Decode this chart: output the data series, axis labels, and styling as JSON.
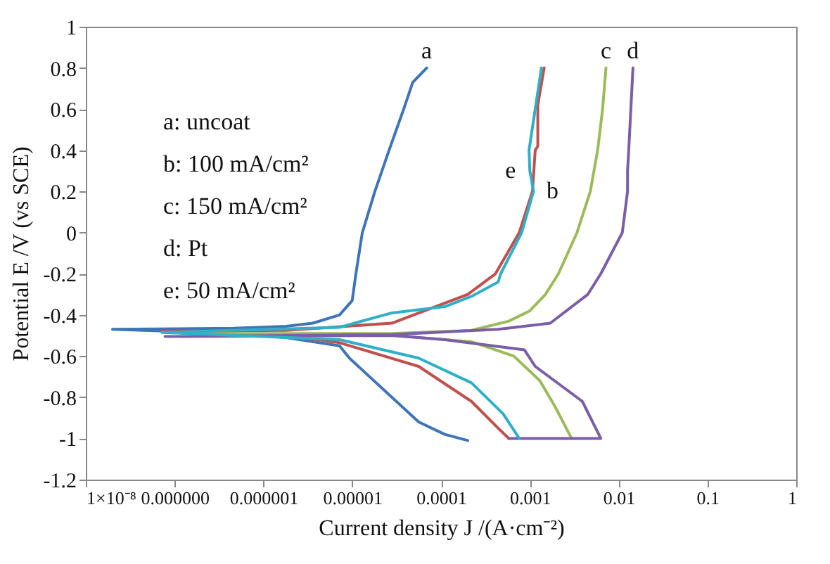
{
  "chart_data": {
    "type": "line",
    "xlabel": "Current density    J /(A·cm⁻²)",
    "ylabel": "Potential    E /V (vs SCE)",
    "log": "x",
    "grid": false,
    "legend": false,
    "marker": "none",
    "line_style": "solid",
    "xlim": [
      1e-08,
      1
    ],
    "ylim": [
      -1.2,
      1
    ],
    "xticks": [
      {
        "value": 1e-08,
        "label": "1×10⁻⁸"
      },
      {
        "value": 1e-07,
        "label": "0.000000"
      },
      {
        "value": 1e-06,
        "label": "0.000001"
      },
      {
        "value": 1e-05,
        "label": "0.00001"
      },
      {
        "value": 0.0001,
        "label": "0.0001"
      },
      0.001,
      0.01,
      0.1,
      1
    ],
    "yticks": [
      -1.2,
      -1,
      -0.8,
      -0.6,
      -0.4,
      -0.2,
      0,
      0.2,
      0.4,
      0.6,
      0.8,
      1
    ],
    "annotations": [
      "a: uncoat",
      "b: 100 mA/cm²",
      "c: 150 mA/cm²",
      "d: Pt",
      "e: 50 mA/cm²"
    ],
    "series": [
      {
        "name": "a",
        "color": "#3f74b8",
        "x": [
          0.0002,
          0.00011,
          5.6e-05,
          2.8e-05,
          9.3e-06,
          7.2e-06,
          1.8e-06,
          4.7e-07,
          2e-08,
          4.7e-07,
          1.8e-06,
          3.6e-06,
          7.2e-06,
          1e-05,
          1.1e-05,
          1.3e-05,
          1.8e-05,
          2.6e-05,
          3.8e-05,
          4.8e-05,
          6.9e-05
        ],
        "values": [
          -1.01,
          -0.98,
          -0.92,
          -0.8,
          -0.61,
          -0.55,
          -0.51,
          -0.49,
          -0.47,
          -0.465,
          -0.455,
          -0.44,
          -0.4,
          -0.33,
          -0.2,
          0,
          0.2,
          0.4,
          0.6,
          0.73,
          0.8
        ]
      },
      {
        "name": "b",
        "color": "#c0504d",
        "x": [
          0.00058,
          0.00044,
          0.00022,
          5.6e-05,
          7.2e-06,
          1.8e-06,
          7.2e-08,
          1.8e-06,
          2.8e-05,
          4.9e-05,
          0.0002,
          0.00041,
          0.00076,
          0.00107,
          0.00115,
          0.00123,
          0.00123,
          0.00145
        ],
        "values": [
          -1.0,
          -0.95,
          -0.82,
          -0.65,
          -0.535,
          -0.5,
          -0.48,
          -0.475,
          -0.44,
          -0.4,
          -0.3,
          -0.2,
          0,
          0.2,
          0.4,
          0.42,
          0.62,
          0.8
        ]
      },
      {
        "name": "c",
        "color": "#9bbb59",
        "x": [
          0.00295,
          0.00195,
          0.0013,
          0.00066,
          0.00022,
          2.8e-05,
          1.5e-07,
          2.8e-05,
          0.00022,
          0.00058,
          0.001,
          0.0015,
          0.0021,
          0.0034,
          0.0048,
          0.0058,
          0.0066,
          0.0072
        ],
        "values": [
          -1.0,
          -0.85,
          -0.72,
          -0.6,
          -0.53,
          -0.5,
          -0.49,
          -0.49,
          -0.475,
          -0.43,
          -0.38,
          -0.3,
          -0.2,
          0,
          0.2,
          0.4,
          0.6,
          0.8
        ]
      },
      {
        "name": "d",
        "color": "#7b5ea7",
        "x": [
          0.00058,
          0.0063,
          0.0039,
          0.00115,
          0.00087,
          0.00011,
          2.8e-05,
          7.8e-08,
          2.8e-05,
          0.00044,
          0.0017,
          0.0045,
          0.0063,
          0.011,
          0.0126,
          0.0126,
          0.013,
          0.0145
        ],
        "values": [
          -1.0,
          -1.0,
          -0.82,
          -0.65,
          -0.57,
          -0.52,
          -0.5,
          -0.505,
          -0.495,
          -0.47,
          -0.44,
          -0.3,
          -0.2,
          0,
          0.2,
          0.3,
          0.4,
          0.8
        ]
      },
      {
        "name": "e",
        "color": "#2fb0c8",
        "x": [
          0.00076,
          0.0005,
          0.00022,
          5.6e-05,
          7.2e-06,
          7.2e-08,
          7.2e-06,
          2.8e-05,
          0.00011,
          0.00022,
          0.00044,
          0.00047,
          0.00081,
          0.0011,
          0.001,
          0.00098,
          0.00115,
          0.00135
        ],
        "values": [
          -1.0,
          -0.88,
          -0.73,
          -0.61,
          -0.52,
          -0.485,
          -0.46,
          -0.39,
          -0.36,
          -0.31,
          -0.24,
          -0.2,
          0,
          0.2,
          0.3,
          0.4,
          0.6,
          0.8
        ]
      }
    ]
  }
}
